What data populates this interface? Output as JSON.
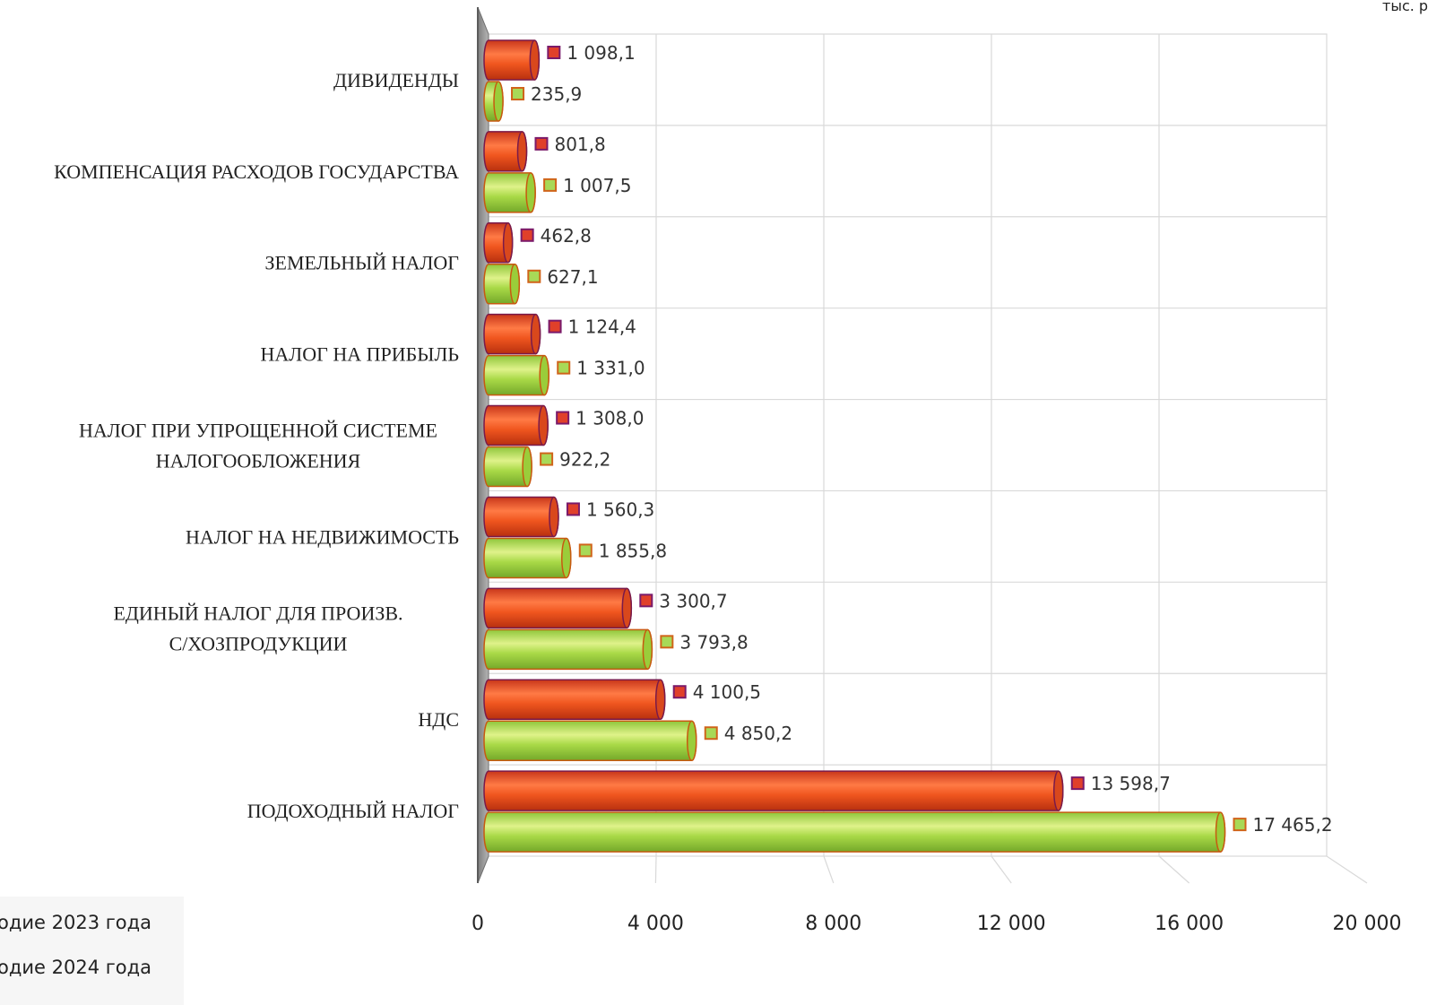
{
  "chart_data": {
    "type": "bar",
    "orientation": "horizontal",
    "unit_label": "тыс. р",
    "categories": [
      [
        "ДИВИДЕНДЫ"
      ],
      [
        "КОМПЕНСАЦИЯ РАСХОДОВ ГОСУДАРСТВА"
      ],
      [
        "ЗЕМЕЛЬНЫЙ НАЛОГ"
      ],
      [
        "НАЛОГ НА ПРИБЫЛЬ"
      ],
      [
        "НАЛОГ ПРИ УПРОЩЕННОЙ СИСТЕМЕ",
        "НАЛОГООБЛОЖЕНИЯ"
      ],
      [
        "НАЛОГ НА НЕДВИЖИМОСТЬ"
      ],
      [
        "ЕДИНЫЙ НАЛОГ ДЛЯ ПРОИЗВ.",
        "С/ХОЗПРОДУКЦИИ"
      ],
      [
        "НДС"
      ],
      [
        "ПОДОХОДНЫЙ НАЛОГ"
      ]
    ],
    "series": [
      {
        "name": "одие 2023 года",
        "color": "#e84e1c",
        "values": [
          1098.1,
          801.8,
          462.8,
          1124.4,
          1308.0,
          1560.3,
          3300.7,
          4100.5,
          13598.7
        ],
        "labels": [
          "1 098,1",
          "801,8",
          "462,8",
          "1 124,4",
          "1 308,0",
          "1 560,3",
          "3 300,7",
          "4 100,5",
          "13 598,7"
        ]
      },
      {
        "name": "одие 2024 года",
        "color": "#8fcc2e",
        "values": [
          235.9,
          1007.5,
          627.1,
          1331.0,
          922.2,
          1855.8,
          3793.8,
          4850.2,
          17465.2
        ],
        "labels": [
          "235,9",
          "1 007,5",
          "627,1",
          "1 331,0",
          "922,2",
          "1 855,8",
          "3 793,8",
          "4 850,2",
          "17 465,2"
        ]
      }
    ],
    "xlim": [
      0,
      20000
    ],
    "xticks": [
      0,
      4000,
      8000,
      12000,
      16000,
      20000
    ],
    "xtick_labels": [
      "0",
      "4 000",
      "8 000",
      "12 000",
      "16 000",
      "20 000"
    ],
    "grid": true,
    "legend_position": "bottom-left"
  }
}
